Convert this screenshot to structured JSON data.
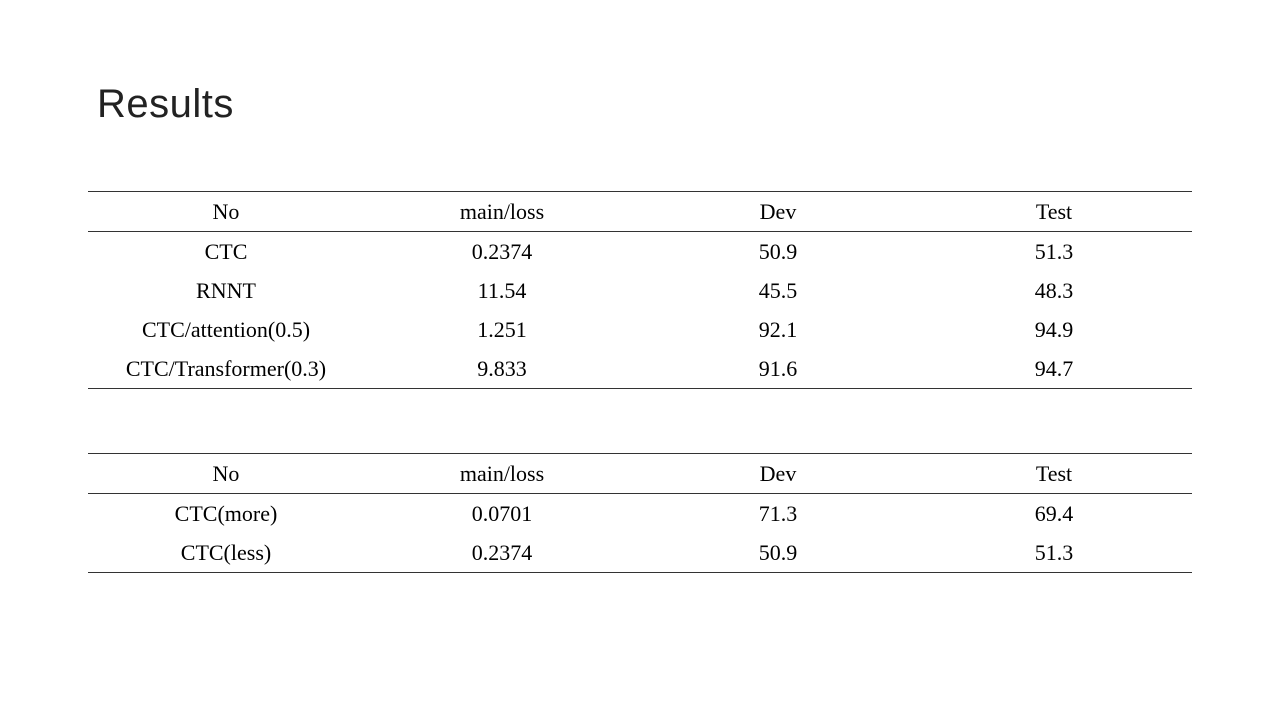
{
  "title": "Results",
  "tables": [
    {
      "header": [
        "No",
        "main/loss",
        "Dev",
        "Test"
      ],
      "rows": [
        [
          "CTC",
          "0.2374",
          "50.9",
          "51.3"
        ],
        [
          "RNNT",
          "11.54",
          "45.5",
          "48.3"
        ],
        [
          "CTC/attention(0.5)",
          "1.251",
          "92.1",
          "94.9"
        ],
        [
          "CTC/Transformer(0.3)",
          "9.833",
          "91.6",
          "94.7"
        ]
      ]
    },
    {
      "header": [
        "No",
        "main/loss",
        "Dev",
        "Test"
      ],
      "rows": [
        [
          "CTC(more)",
          "0.0701",
          "71.3",
          "69.4"
        ],
        [
          "CTC(less)",
          "0.2374",
          "50.9",
          "51.3"
        ]
      ]
    }
  ]
}
